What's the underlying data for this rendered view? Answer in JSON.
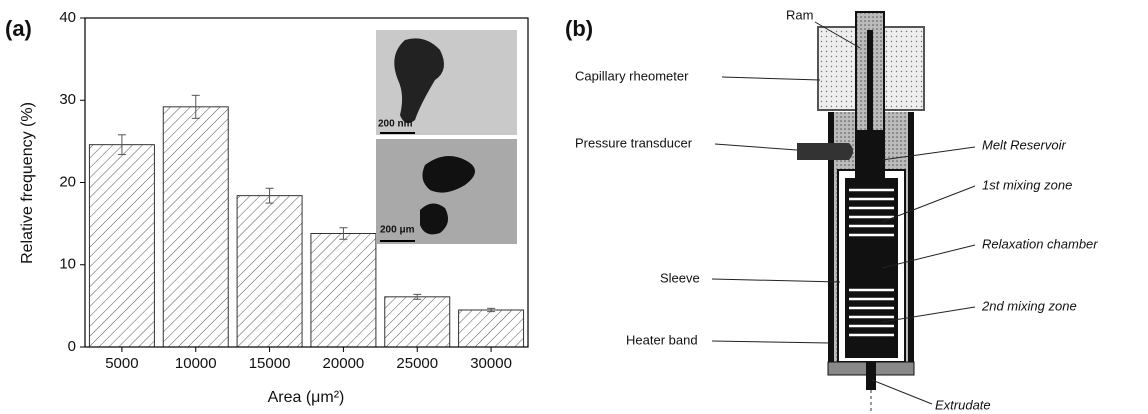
{
  "chart_data": {
    "type": "bar",
    "panel_label": "(a)",
    "x_label": "Area (μm²)",
    "y_label": "Relative frequency (%)",
    "categories": [
      "5000",
      "10000",
      "15000",
      "20000",
      "25000",
      "30000"
    ],
    "values": [
      24.6,
      29.2,
      18.4,
      13.8,
      6.1,
      4.5
    ],
    "errors": [
      1.2,
      1.4,
      0.9,
      0.7,
      0.3,
      0.2
    ],
    "color": "#ffffff",
    "ylim": [
      0,
      40
    ],
    "yticks": [
      0,
      10,
      20,
      30,
      40
    ],
    "inset_scale_labels": [
      "200 nm",
      "200 μm"
    ]
  },
  "diagram": {
    "panel_label": "(b)",
    "labels": [
      "Ram",
      "Capillary rheometer",
      "Pressure transducer",
      "Sleeve",
      "Heater band"
    ],
    "zones": [
      "Melt Reservoir",
      "1st mixing zone",
      "Relaxation chamber",
      "2nd mixing zone",
      "Extrudate"
    ]
  }
}
